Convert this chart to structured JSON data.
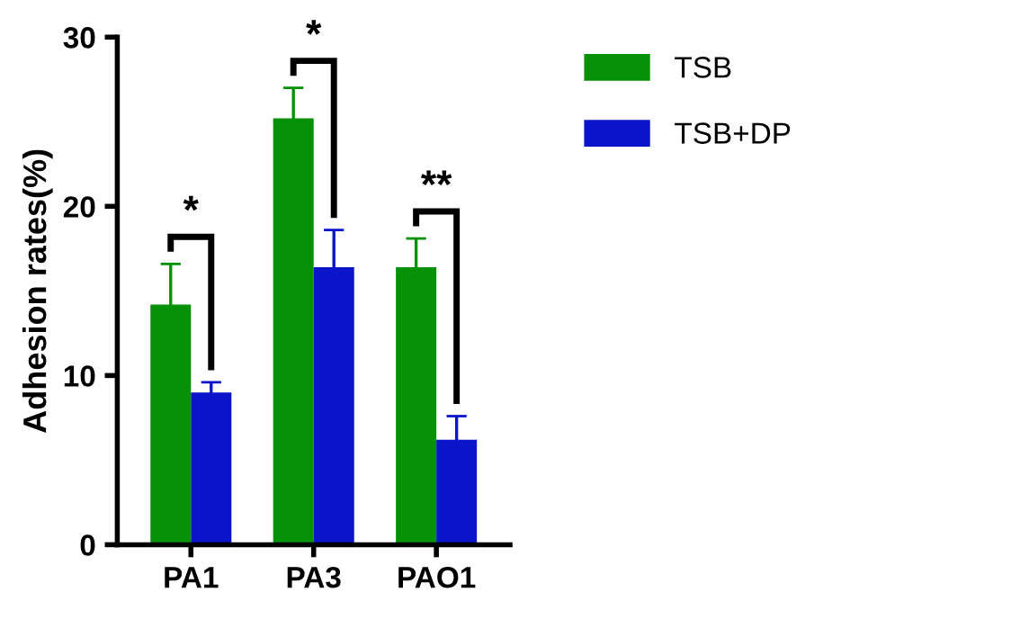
{
  "chart_data": {
    "type": "bar",
    "ylabel": "Adhesion rates(%)",
    "categories": [
      "PA1",
      "PA3",
      "PAO1"
    ],
    "series": [
      {
        "name": "TSB",
        "color": "#079107",
        "values": [
          14.2,
          25.2,
          16.4
        ],
        "errors": [
          2.4,
          1.8,
          1.7
        ]
      },
      {
        "name": "TSB+DP",
        "color": "#0a14c8",
        "values": [
          9.0,
          16.4,
          6.2
        ],
        "errors": [
          0.6,
          2.2,
          1.4
        ]
      }
    ],
    "ylim": [
      0,
      30
    ],
    "yticks": [
      0,
      10,
      20,
      30
    ],
    "grid": false,
    "legend": "top right",
    "annotations": [
      "*",
      "*",
      "**"
    ]
  }
}
